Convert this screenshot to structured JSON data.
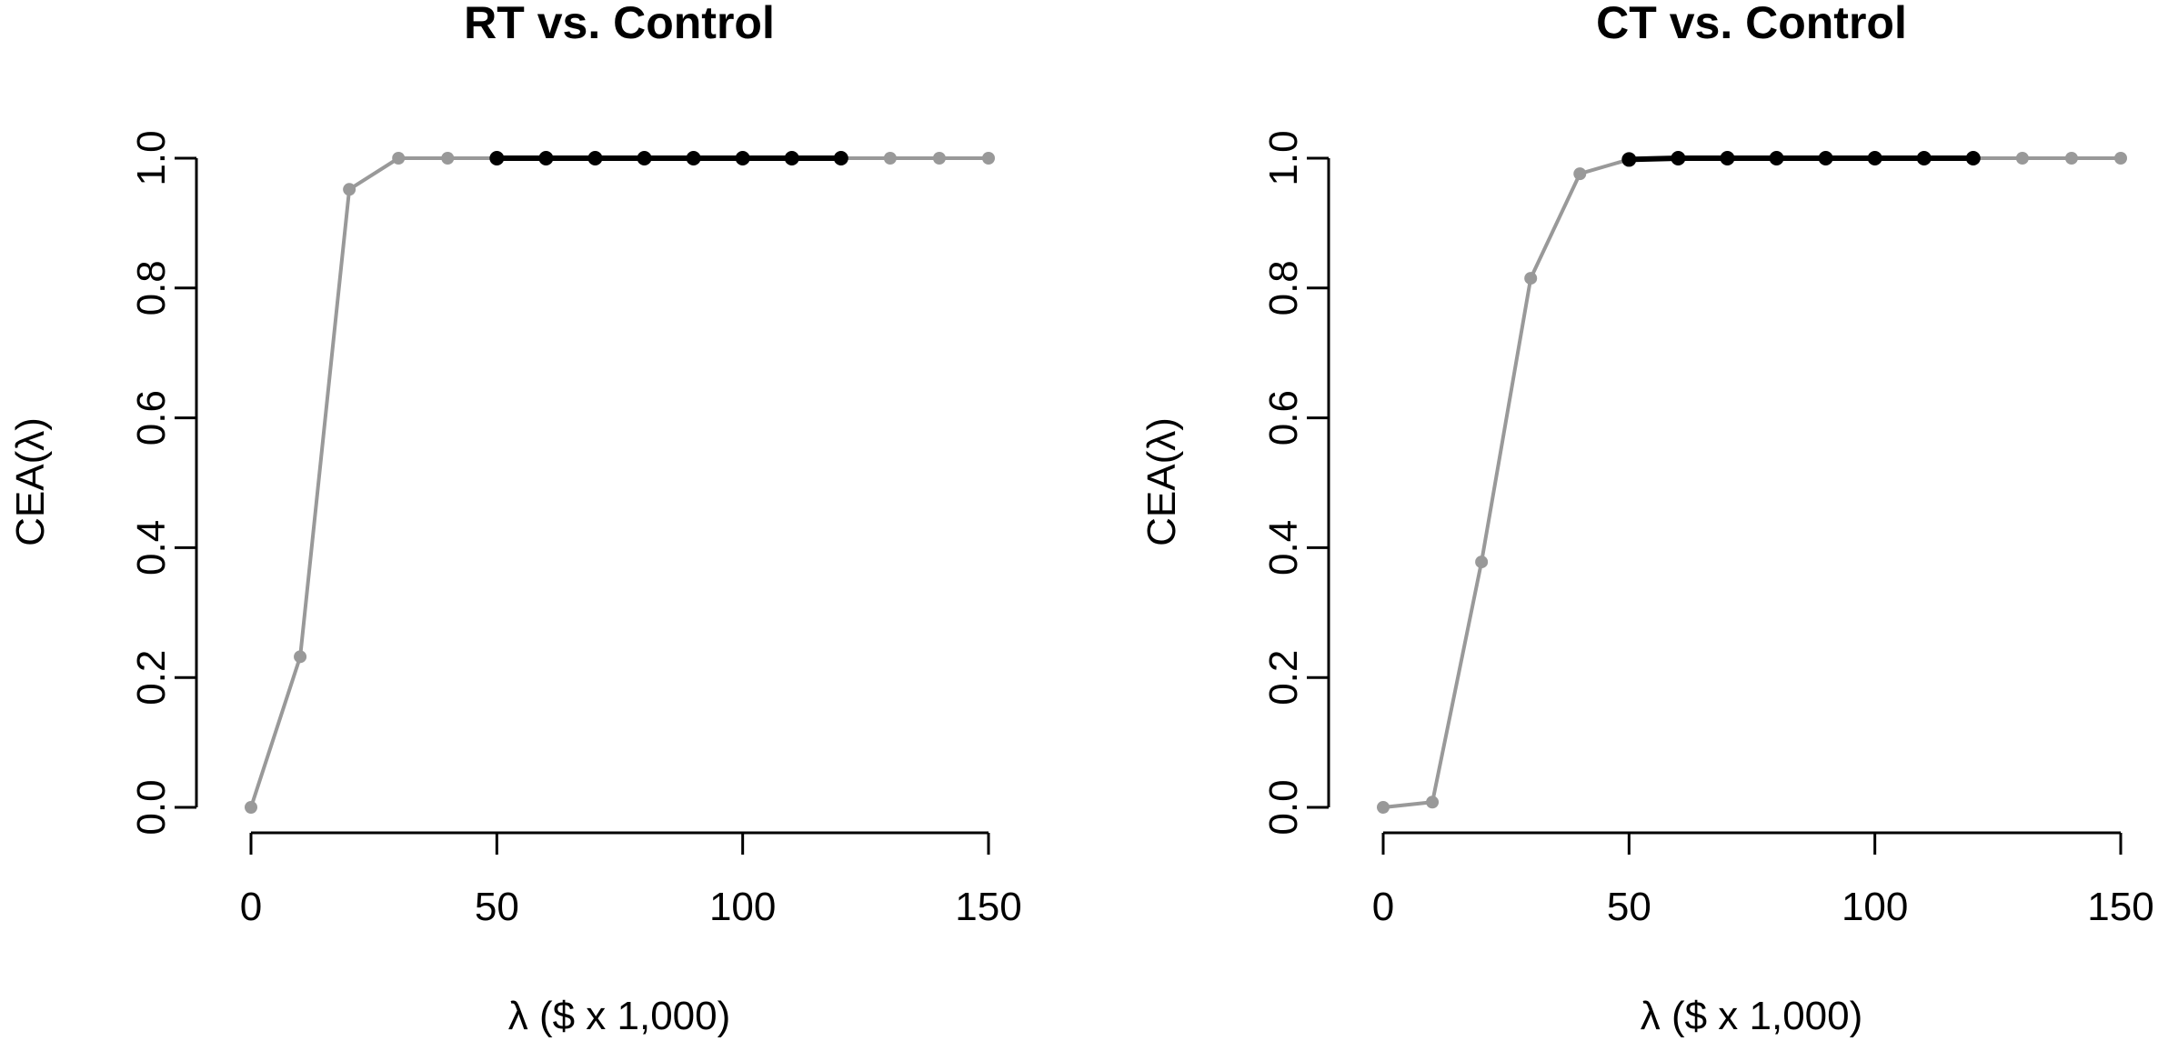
{
  "chart_data": [
    {
      "type": "line",
      "title": "RT vs. Control",
      "xlabel": "λ ($ x 1,000)",
      "ylabel": "CEA(λ)",
      "xlim": [
        0,
        150
      ],
      "ylim": [
        0,
        1
      ],
      "xticks": [
        0,
        50,
        100,
        150
      ],
      "xtick_labels": [
        "0",
        "50",
        "100",
        "150"
      ],
      "yticks": [
        0,
        0.2,
        0.4,
        0.6,
        0.8,
        1.0
      ],
      "ytick_labels": [
        "0.0",
        "0.2",
        "0.4",
        "0.6",
        "0.8",
        "1.0"
      ],
      "grid": false,
      "series": [
        {
          "color": "#999999",
          "x": [
            0,
            10,
            20,
            30,
            40,
            50,
            60,
            70,
            80,
            90,
            100,
            110,
            120,
            130,
            140,
            150
          ],
          "y": [
            0.0,
            0.232,
            0.952,
            1.0,
            1.0,
            1.0,
            1.0,
            1.0,
            1.0,
            1.0,
            1.0,
            1.0,
            1.0,
            1.0,
            1.0,
            1.0
          ]
        },
        {
          "color": "#000000",
          "x": [
            50,
            60,
            70,
            80,
            90,
            100,
            110,
            120
          ],
          "y": [
            1.0,
            1.0,
            1.0,
            1.0,
            1.0,
            1.0,
            1.0,
            1.0
          ]
        }
      ]
    },
    {
      "type": "line",
      "title": "CT vs. Control",
      "xlabel": "λ ($ x 1,000)",
      "ylabel": "CEA(λ)",
      "xlim": [
        0,
        150
      ],
      "ylim": [
        0,
        1
      ],
      "xticks": [
        0,
        50,
        100,
        150
      ],
      "xtick_labels": [
        "0",
        "50",
        "100",
        "150"
      ],
      "yticks": [
        0,
        0.2,
        0.4,
        0.6,
        0.8,
        1.0
      ],
      "ytick_labels": [
        "0.0",
        "0.2",
        "0.4",
        "0.6",
        "0.8",
        "1.0"
      ],
      "grid": false,
      "series": [
        {
          "color": "#999999",
          "x": [
            0,
            10,
            20,
            30,
            40,
            50,
            60,
            70,
            80,
            90,
            100,
            110,
            120,
            130,
            140,
            150
          ],
          "y": [
            0.0,
            0.008,
            0.378,
            0.815,
            0.976,
            0.998,
            1.0,
            1.0,
            1.0,
            1.0,
            1.0,
            1.0,
            1.0,
            1.0,
            1.0,
            1.0
          ]
        },
        {
          "color": "#000000",
          "x": [
            50,
            60,
            70,
            80,
            90,
            100,
            110,
            120
          ],
          "y": [
            0.998,
            1.0,
            1.0,
            1.0,
            1.0,
            1.0,
            1.0,
            1.0
          ]
        }
      ]
    }
  ]
}
